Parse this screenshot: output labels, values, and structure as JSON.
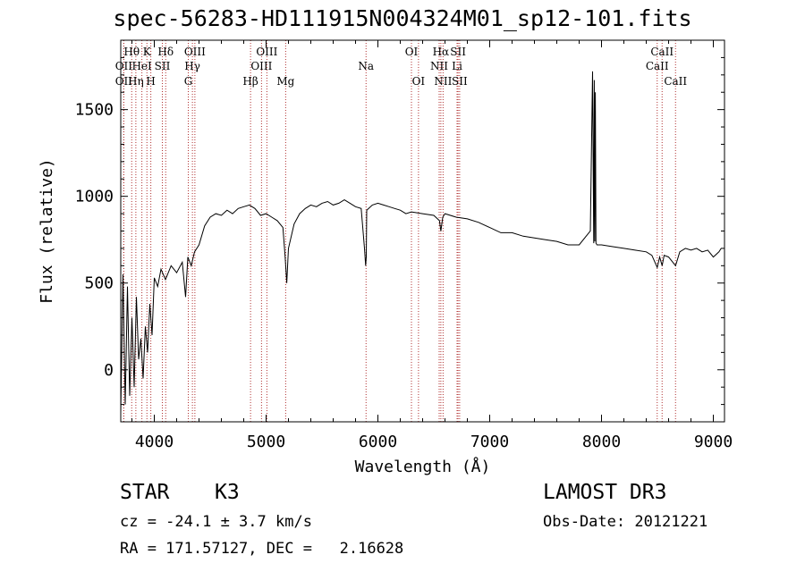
{
  "chart_data": {
    "type": "line",
    "title": "spec-56283-HD111915N004324M01_sp12-101.fits",
    "xlabel": "Wavelength (Å)",
    "ylabel": "Flux (relative)",
    "xlim": [
      3700,
      9100
    ],
    "ylim": [
      -300,
      1900
    ],
    "xticks": [
      4000,
      5000,
      6000,
      7000,
      8000,
      9000
    ],
    "yticks": [
      0,
      500,
      1000,
      1500
    ],
    "xtick_labels": [
      "4000",
      "5000",
      "6000",
      "7000",
      "8000",
      "9000"
    ],
    "ytick_labels": [
      "0",
      "500",
      "1000",
      "1500"
    ],
    "series": [
      {
        "name": "flux",
        "x": [
          3700,
          3720,
          3740,
          3760,
          3780,
          3800,
          3820,
          3840,
          3860,
          3880,
          3900,
          3920,
          3940,
          3960,
          3980,
          4000,
          4030,
          4060,
          4100,
          4150,
          4200,
          4250,
          4280,
          4300,
          4330,
          4360,
          4400,
          4450,
          4500,
          4550,
          4600,
          4650,
          4700,
          4750,
          4800,
          4850,
          4900,
          4950,
          5000,
          5050,
          5100,
          5150,
          5170,
          5185,
          5200,
          5250,
          5300,
          5350,
          5400,
          5450,
          5500,
          5550,
          5600,
          5650,
          5700,
          5750,
          5800,
          5850,
          5880,
          5890,
          5896,
          5900,
          5950,
          6000,
          6050,
          6100,
          6150,
          6200,
          6250,
          6300,
          6400,
          6500,
          6550,
          6563,
          6580,
          6600,
          6700,
          6800,
          6900,
          7000,
          7100,
          7200,
          7300,
          7400,
          7500,
          7600,
          7700,
          7800,
          7900,
          7920,
          7930,
          7935,
          7940,
          7945,
          7950,
          7960,
          8000,
          8100,
          8200,
          8300,
          8400,
          8450,
          8498,
          8520,
          8542,
          8560,
          8600,
          8662,
          8700,
          8750,
          8800,
          8850,
          8900,
          8950,
          9000,
          9050,
          9070
        ],
        "y": [
          -250,
          550,
          -200,
          480,
          -150,
          300,
          -100,
          420,
          60,
          180,
          -50,
          250,
          100,
          380,
          200,
          530,
          480,
          580,
          520,
          600,
          560,
          620,
          420,
          650,
          600,
          680,
          720,
          830,
          880,
          900,
          890,
          920,
          900,
          930,
          940,
          950,
          930,
          890,
          900,
          880,
          860,
          820,
          650,
          500,
          700,
          840,
          900,
          930,
          950,
          940,
          960,
          970,
          950,
          960,
          980,
          960,
          940,
          930,
          700,
          600,
          650,
          920,
          950,
          960,
          950,
          940,
          930,
          920,
          900,
          910,
          900,
          890,
          860,
          800,
          880,
          900,
          880,
          870,
          850,
          820,
          790,
          790,
          770,
          760,
          750,
          740,
          720,
          720,
          800,
          1720,
          730,
          1670,
          740,
          1600,
          730,
          720,
          720,
          710,
          700,
          690,
          680,
          660,
          590,
          650,
          600,
          660,
          650,
          600,
          680,
          700,
          690,
          700,
          680,
          690,
          650,
          680,
          700
        ]
      }
    ],
    "spectral_lines": [
      {
        "name": "Hθ",
        "x": 3798,
        "row": 1
      },
      {
        "name": "OII",
        "x": 3727,
        "row": 2
      },
      {
        "name": "OII",
        "x": 3727,
        "row": 3
      },
      {
        "name": "K",
        "x": 3934,
        "row": 1
      },
      {
        "name": "HeI",
        "x": 3889,
        "row": 2
      },
      {
        "name": "Hη",
        "x": 3835,
        "row": 3
      },
      {
        "name": "H",
        "x": 3969,
        "row": 3
      },
      {
        "name": "Hδ",
        "x": 4102,
        "row": 1
      },
      {
        "name": "SII",
        "x": 4072,
        "row": 2
      },
      {
        "name": "OIII",
        "x": 4363,
        "row": 1
      },
      {
        "name": "Hγ",
        "x": 4341,
        "row": 2
      },
      {
        "name": "G",
        "x": 4304,
        "row": 3
      },
      {
        "name": "Hβ",
        "x": 4861,
        "row": 3
      },
      {
        "name": "OIII",
        "x": 5007,
        "row": 1
      },
      {
        "name": "OIII",
        "x": 4959,
        "row": 2
      },
      {
        "name": "Mg",
        "x": 5175,
        "row": 3
      },
      {
        "name": "Na",
        "x": 5894,
        "row": 2
      },
      {
        "name": "OI",
        "x": 6300,
        "row": 1
      },
      {
        "name": "OI",
        "x": 6363,
        "row": 3
      },
      {
        "name": "Hα",
        "x": 6563,
        "row": 1
      },
      {
        "name": "NII",
        "x": 6548,
        "row": 2
      },
      {
        "name": "NII",
        "x": 6583,
        "row": 3
      },
      {
        "name": "SII",
        "x": 6717,
        "row": 1
      },
      {
        "name": "Li",
        "x": 6708,
        "row": 2
      },
      {
        "name": "SII",
        "x": 6731,
        "row": 3
      },
      {
        "name": "CaII",
        "x": 8542,
        "row": 1
      },
      {
        "name": "CaII",
        "x": 8498,
        "row": 2
      },
      {
        "name": "CaII",
        "x": 8662,
        "row": 3
      }
    ],
    "line_color": "#b03030",
    "series_color": "#000000"
  },
  "info": {
    "object_class": "STAR",
    "subclass": "K3",
    "survey": "LAMOST DR3",
    "redshift": "cz = -24.1 ± 3.7 km/s",
    "obs_date": "Obs-Date: 20121221",
    "coordinates": "RA = 171.57127, DEC =   2.16628"
  }
}
